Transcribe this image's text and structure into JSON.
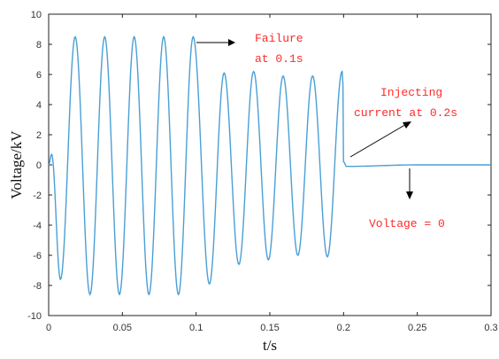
{
  "chart_data": {
    "type": "line",
    "xlabel": "t/s",
    "ylabel": "Voltage/kV",
    "xlim": [
      0,
      0.3
    ],
    "ylim": [
      -10,
      10
    ],
    "x_ticks": [
      "0",
      "0.05",
      "0.1",
      "0.15",
      "0.2",
      "0.25",
      "0.3"
    ],
    "y_ticks": [
      "10",
      "8",
      "6",
      "4",
      "2",
      "0",
      "-2",
      "-4",
      "-6",
      "-8",
      "-10"
    ],
    "grid": false,
    "series": [
      {
        "color": "#4a9fd5",
        "x": [
          0,
          0.002,
          0.008,
          0.018,
          0.028,
          0.038,
          0.048,
          0.058,
          0.068,
          0.078,
          0.088,
          0.098,
          0.109,
          0.119,
          0.129,
          0.139,
          0.149,
          0.159,
          0.169,
          0.179,
          0.189,
          0.199,
          0.1995,
          0.2,
          0.202,
          0.25,
          0.3
        ],
        "y": [
          0,
          0.7,
          -7.6,
          8.5,
          -8.6,
          8.5,
          -8.6,
          8.5,
          -8.6,
          8.5,
          -8.6,
          8.5,
          -7.9,
          6.1,
          -6.6,
          6.2,
          -6.3,
          5.9,
          -6.0,
          5.9,
          -6.1,
          6.2,
          5.5,
          0.2,
          -0.1,
          0.0,
          0.0
        ]
      }
    ],
    "annotations": [
      {
        "lines": [
          "Failure",
          "at 0.1s"
        ]
      },
      {
        "lines": [
          "Injecting",
          "current at 0.2s"
        ]
      },
      {
        "lines": [
          "Voltage = 0"
        ]
      }
    ]
  }
}
